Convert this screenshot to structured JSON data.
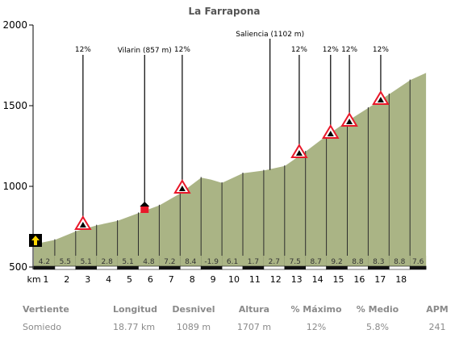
{
  "chart_data": {
    "type": "area",
    "title": "La Farrapona",
    "xlabel": "km",
    "ylabel": "",
    "x_ticks": [
      1,
      2,
      3,
      4,
      5,
      6,
      7,
      8,
      9,
      10,
      11,
      12,
      13,
      14,
      15,
      16,
      17,
      18
    ],
    "ylim": [
      500,
      2000
    ],
    "y_ticks": [
      500,
      1000,
      1500,
      2000
    ],
    "xlim": [
      0,
      18.77
    ],
    "profile": [
      {
        "x": 0.0,
        "y": 645
      },
      {
        "x": 1.0,
        "y": 672
      },
      {
        "x": 2.0,
        "y": 725
      },
      {
        "x": 3.0,
        "y": 762
      },
      {
        "x": 4.0,
        "y": 790
      },
      {
        "x": 5.0,
        "y": 838
      },
      {
        "x": 6.0,
        "y": 886
      },
      {
        "x": 7.0,
        "y": 960
      },
      {
        "x": 8.0,
        "y": 1058
      },
      {
        "x": 8.5,
        "y": 1045
      },
      {
        "x": 9.0,
        "y": 1025
      },
      {
        "x": 10.0,
        "y": 1085
      },
      {
        "x": 11.0,
        "y": 1102
      },
      {
        "x": 12.0,
        "y": 1130
      },
      {
        "x": 13.0,
        "y": 1220
      },
      {
        "x": 14.0,
        "y": 1318
      },
      {
        "x": 15.0,
        "y": 1408
      },
      {
        "x": 16.0,
        "y": 1490
      },
      {
        "x": 17.0,
        "y": 1575
      },
      {
        "x": 18.0,
        "y": 1662
      },
      {
        "x": 18.77,
        "y": 1707
      }
    ],
    "segments": [
      "4.2",
      "5.5",
      "5.1",
      "2.8",
      "5.1",
      "4.8",
      "7.2",
      "8.4",
      "-1.9",
      "6.1",
      "1.7",
      "2.7",
      "7.5",
      "8.7",
      "9.2",
      "8.8",
      "8.3",
      "8.8",
      "7.6"
    ],
    "annotations": [
      {
        "x": 2.35,
        "y": 765,
        "label": "12%",
        "kind": "steep"
      },
      {
        "x": 5.3,
        "y": 875,
        "label": "Vilarin (857 m)",
        "kind": "place"
      },
      {
        "x": 7.1,
        "y": 990,
        "label": "12%",
        "kind": "steep"
      },
      {
        "x": 11.3,
        "y": 1102,
        "label": "Saliencia (1102 m)",
        "kind": "place"
      },
      {
        "x": 12.7,
        "y": 1210,
        "label": "12%",
        "kind": "steep"
      },
      {
        "x": 14.2,
        "y": 1330,
        "label": "12%",
        "kind": "steep"
      },
      {
        "x": 15.1,
        "y": 1405,
        "label": "12%",
        "kind": "steep"
      },
      {
        "x": 16.6,
        "y": 1540,
        "label": "12%",
        "kind": "steep"
      }
    ],
    "grid": false,
    "fill_color": "#aab485",
    "line_color": "#ffffff",
    "steep_color": "#e8182a"
  },
  "stats": {
    "headers": [
      "Vertiente",
      "Longitud",
      "Desnivel",
      "Altura",
      "% Máximo",
      "% Medio",
      "APM"
    ],
    "values": [
      "Somiedo",
      "18.77 km",
      "1089 m",
      "1707 m",
      "12%",
      "5.8%",
      "241"
    ]
  }
}
